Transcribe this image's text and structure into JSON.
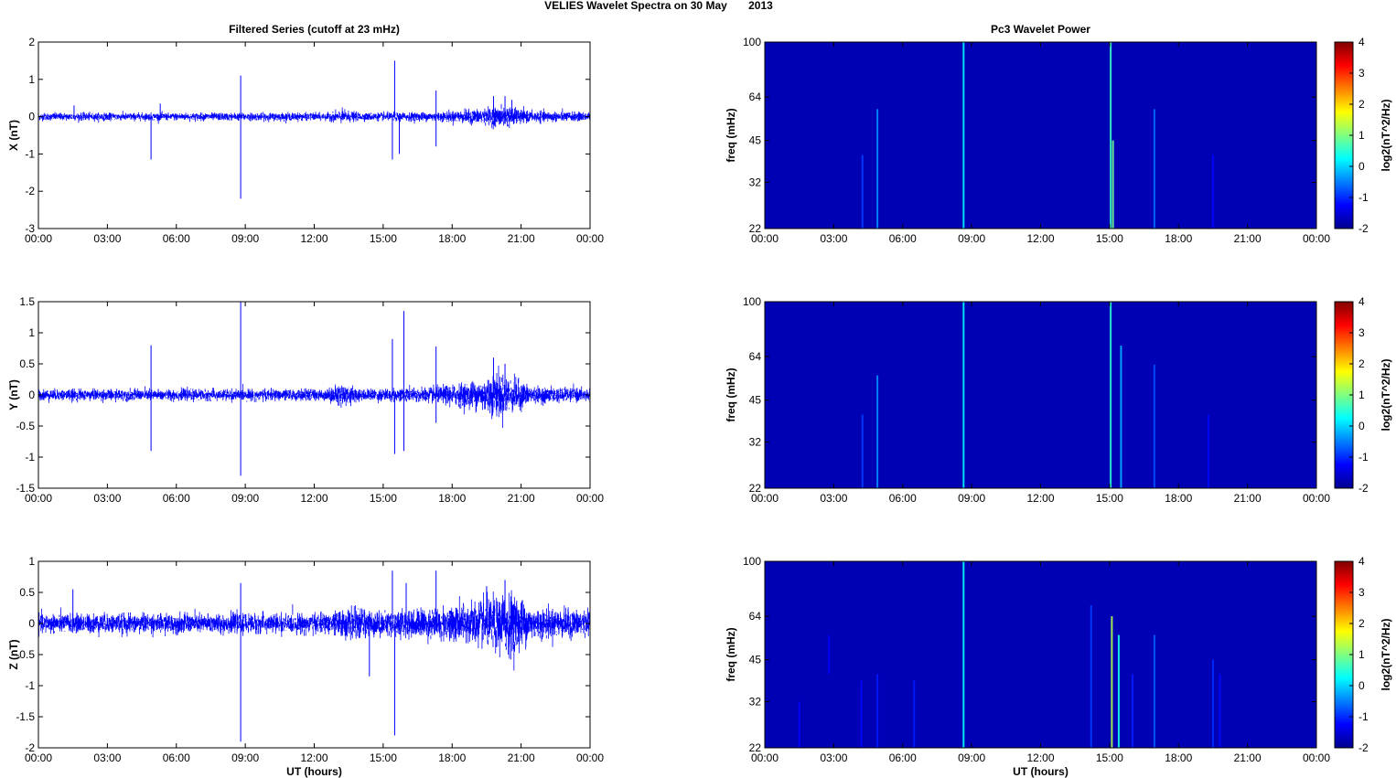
{
  "figure": {
    "title": "VELIES Wavelet Spectra on 30 May       2013"
  },
  "chart_data": [
    {
      "type": "line",
      "panel": "filtered-x",
      "title": "Filtered Series (cutoff at 23 mHz)",
      "ylabel": "X (nT)",
      "xlabel": "",
      "x_ticks": [
        "00:00",
        "03:00",
        "06:00",
        "09:00",
        "12:00",
        "15:00",
        "18:00",
        "21:00",
        "00:00"
      ],
      "xlim_hours": [
        0,
        24
      ],
      "ylim": [
        -3,
        2
      ],
      "y_ticks": [
        -3,
        -2,
        -1,
        0,
        1,
        2
      ],
      "line_color": "#0000ff",
      "noise_envelope": [
        [
          0,
          0.08
        ],
        [
          12.6,
          0.08
        ],
        [
          13.2,
          0.14
        ],
        [
          14,
          0.08
        ],
        [
          17.5,
          0.1
        ],
        [
          19.2,
          0.16
        ],
        [
          20.4,
          0.22
        ],
        [
          21.2,
          0.12
        ],
        [
          24,
          0.09
        ]
      ],
      "spikes": [
        [
          1.55,
          0.3
        ],
        [
          4.9,
          -1.15
        ],
        [
          5.3,
          0.35
        ],
        [
          8.8,
          1.1
        ],
        [
          8.8,
          -2.2
        ],
        [
          15.5,
          1.5
        ],
        [
          15.4,
          -1.15
        ],
        [
          15.7,
          -1.0
        ],
        [
          17.3,
          0.7
        ],
        [
          17.3,
          -0.8
        ],
        [
          19.8,
          0.55
        ],
        [
          20.3,
          0.55
        ],
        [
          20.6,
          0.45
        ]
      ]
    },
    {
      "type": "line",
      "panel": "filtered-y",
      "title": "",
      "ylabel": "Y (nT)",
      "xlabel": "",
      "x_ticks": [
        "00:00",
        "03:00",
        "06:00",
        "09:00",
        "12:00",
        "15:00",
        "18:00",
        "21:00",
        "00:00"
      ],
      "xlim_hours": [
        0,
        24
      ],
      "ylim": [
        -1.5,
        1.5
      ],
      "y_ticks": [
        -1.5,
        -1,
        -0.5,
        0,
        0.5,
        1,
        1.5
      ],
      "y_tick_labels": [
        "-1.5",
        "-1",
        "-0.5",
        "0",
        "0.5",
        "1",
        "1.5"
      ],
      "line_color": "#0000ff",
      "noise_envelope": [
        [
          0,
          0.07
        ],
        [
          12.5,
          0.07
        ],
        [
          13.2,
          0.15
        ],
        [
          14,
          0.07
        ],
        [
          17.3,
          0.1
        ],
        [
          19,
          0.18
        ],
        [
          20,
          0.28
        ],
        [
          20.8,
          0.2
        ],
        [
          21.5,
          0.1
        ],
        [
          24,
          0.08
        ]
      ],
      "spikes": [
        [
          4.9,
          0.8
        ],
        [
          4.9,
          -0.9
        ],
        [
          8.8,
          1.5
        ],
        [
          8.8,
          -1.3
        ],
        [
          15.4,
          0.9
        ],
        [
          15.5,
          -0.95
        ],
        [
          15.9,
          1.35
        ],
        [
          15.9,
          -0.9
        ],
        [
          17.3,
          0.78
        ],
        [
          17.3,
          -0.45
        ],
        [
          19.8,
          0.6
        ],
        [
          20.3,
          0.5
        ]
      ]
    },
    {
      "type": "line",
      "panel": "filtered-z",
      "title": "",
      "ylabel": "Z (nT)",
      "xlabel": "UT (hours)",
      "x_ticks": [
        "00:00",
        "03:00",
        "06:00",
        "09:00",
        "12:00",
        "15:00",
        "18:00",
        "21:00",
        "00:00"
      ],
      "xlim_hours": [
        0,
        24
      ],
      "ylim": [
        -2,
        1
      ],
      "y_ticks": [
        -2,
        -1.5,
        -1,
        -0.5,
        0,
        0.5,
        1
      ],
      "y_tick_labels": [
        "-2",
        "-1.5",
        "-1",
        "-0.5",
        "0",
        "0.5",
        "1"
      ],
      "line_color": "#0000ff",
      "noise_envelope": [
        [
          0,
          0.12
        ],
        [
          12.5,
          0.12
        ],
        [
          13.5,
          0.2
        ],
        [
          15,
          0.15
        ],
        [
          17.5,
          0.2
        ],
        [
          19.5,
          0.3
        ],
        [
          20.6,
          0.4
        ],
        [
          21.5,
          0.2
        ],
        [
          24,
          0.16
        ]
      ],
      "spikes": [
        [
          1.5,
          0.55
        ],
        [
          8.8,
          0.65
        ],
        [
          8.8,
          -1.9
        ],
        [
          14.4,
          -0.85
        ],
        [
          15.4,
          0.85
        ],
        [
          15.5,
          -1.8
        ],
        [
          16,
          0.65
        ],
        [
          17.3,
          0.85
        ],
        [
          19.5,
          0.6
        ],
        [
          20.3,
          0.7
        ]
      ]
    },
    {
      "type": "heatmap",
      "panel": "wavelet-x",
      "title": "Pc3 Wavelet Power",
      "ylabel": "freq (mHz)",
      "xlabel": "",
      "x_ticks": [
        "00:00",
        "03:00",
        "06:00",
        "09:00",
        "12:00",
        "15:00",
        "18:00",
        "21:00",
        "00:00"
      ],
      "xlim_hours": [
        0,
        24
      ],
      "y_ticks": [
        22,
        32,
        45,
        64,
        100
      ],
      "y_scale": "log",
      "colorbar": {
        "label": "log2(nT^2/Hz)",
        "range": [
          -2,
          4
        ],
        "ticks": [
          -2,
          -1,
          0,
          1,
          2,
          3,
          4
        ],
        "colormap": "jet"
      },
      "background_level": -1.75,
      "streaks": [
        [
          4.25,
          -0.9,
          22,
          40
        ],
        [
          4.9,
          -0.4,
          22,
          58
        ],
        [
          8.65,
          0.2,
          22,
          100
        ],
        [
          15.05,
          0.6,
          22,
          100
        ],
        [
          15.15,
          0.9,
          22,
          45
        ],
        [
          16.95,
          -0.6,
          22,
          58
        ],
        [
          19.5,
          -1.2,
          22,
          40
        ]
      ]
    },
    {
      "type": "heatmap",
      "panel": "wavelet-y",
      "title": "",
      "ylabel": "freq (mHz)",
      "xlabel": "",
      "x_ticks": [
        "00:00",
        "03:00",
        "06:00",
        "09:00",
        "12:00",
        "15:00",
        "18:00",
        "21:00",
        "00:00"
      ],
      "xlim_hours": [
        0,
        24
      ],
      "y_ticks": [
        22,
        32,
        45,
        64,
        100
      ],
      "y_scale": "log",
      "colorbar": {
        "label": "log2(nT^2/Hz)",
        "range": [
          -2,
          4
        ],
        "ticks": [
          -2,
          -1,
          0,
          1,
          2,
          3,
          4
        ],
        "colormap": "jet"
      },
      "background_level": -1.75,
      "streaks": [
        [
          4.25,
          -0.9,
          22,
          40
        ],
        [
          4.9,
          -0.4,
          22,
          55
        ],
        [
          8.65,
          0.2,
          22,
          100
        ],
        [
          15.05,
          0.5,
          22,
          100
        ],
        [
          15.5,
          -0.2,
          22,
          70
        ],
        [
          16.95,
          -0.8,
          22,
          60
        ],
        [
          19.3,
          -1.2,
          22,
          40
        ]
      ]
    },
    {
      "type": "heatmap",
      "panel": "wavelet-z",
      "title": "",
      "ylabel": "freq (mHz)",
      "xlabel": "UT (hours)",
      "x_ticks": [
        "00:00",
        "03:00",
        "06:00",
        "09:00",
        "12:00",
        "15:00",
        "18:00",
        "21:00",
        "00:00"
      ],
      "xlim_hours": [
        0,
        24
      ],
      "y_ticks": [
        22,
        32,
        45,
        64,
        100
      ],
      "y_scale": "log",
      "colorbar": {
        "label": "log2(nT^2/Hz)",
        "range": [
          -2,
          4
        ],
        "ticks": [
          -2,
          -1,
          0,
          1,
          2,
          3,
          4
        ],
        "colormap": "jet"
      },
      "background_level": -1.75,
      "streaks": [
        [
          1.5,
          -1.2,
          22,
          32
        ],
        [
          2.8,
          -1.3,
          40,
          55
        ],
        [
          4.2,
          -1.2,
          22,
          38
        ],
        [
          4.9,
          -1.1,
          22,
          40
        ],
        [
          6.5,
          -1.1,
          22,
          38
        ],
        [
          8.65,
          0.3,
          22,
          100
        ],
        [
          14.2,
          -0.9,
          22,
          70
        ],
        [
          15.1,
          1.3,
          22,
          64
        ],
        [
          15.4,
          0.4,
          22,
          55
        ],
        [
          16,
          -1.1,
          22,
          40
        ],
        [
          16.95,
          -0.7,
          22,
          55
        ],
        [
          19.5,
          -1.0,
          22,
          45
        ],
        [
          19.8,
          -1.2,
          22,
          40
        ]
      ]
    }
  ]
}
